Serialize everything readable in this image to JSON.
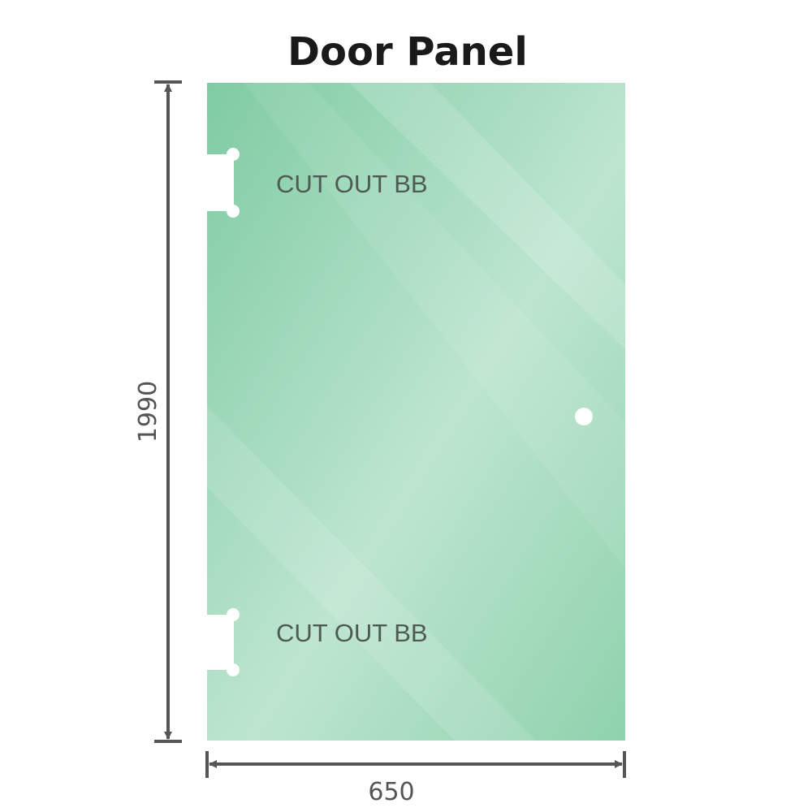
{
  "title": "Door Panel",
  "dimensions": {
    "height": "1990",
    "width": "650"
  },
  "labels": {
    "cutout_top": "CUT OUT BB",
    "cutout_bottom": "CUT OUT BB"
  },
  "colors": {
    "glass_edge": "#7fcba3",
    "glass_center": "#bde5d0",
    "dimension_line": "#555555"
  }
}
